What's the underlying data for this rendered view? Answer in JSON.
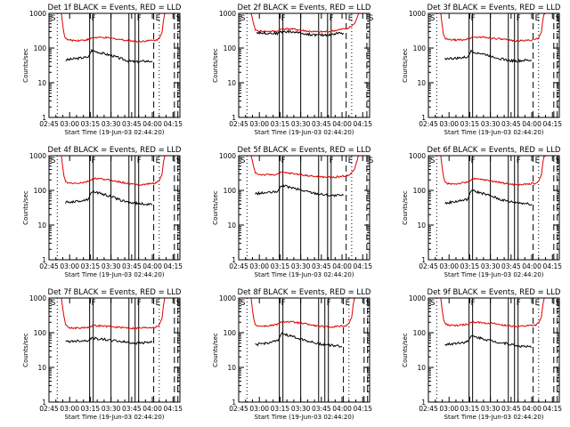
{
  "colors": {
    "events": "#000000",
    "lld": "#e00000",
    "background": "#ffffff"
  },
  "chart_data": [
    {
      "type": "line",
      "title": "Det 1f BLACK = Events, RED = LLD",
      "xlabel": "Start Time (19-Jun-03 02:44:20)",
      "ylabel": "Counts/sec",
      "yscale": "log",
      "ylim": [
        1,
        1000
      ],
      "xlim_min": [
        0,
        95
      ],
      "xticks": [
        "02:45",
        "03:00",
        "03:15",
        "03:30",
        "03:45",
        "04:00",
        "04:15"
      ],
      "yticks": [
        "1",
        "10",
        "100",
        "1000"
      ],
      "event_markers": {
        "S1": 0,
        "F1": 29.5,
        "F2": 62.5,
        "E": 76,
        "S2": 91
      },
      "series": [
        {
          "name": "Events",
          "color": "#000000",
          "x": [
            12,
            20,
            28.5,
            31,
            38,
            46,
            52,
            58,
            64,
            70,
            75
          ],
          "y": [
            45,
            50,
            55,
            85,
            72,
            60,
            50,
            42,
            40,
            42,
            42
          ]
        },
        {
          "name": "LLD",
          "color": "#e00000",
          "x": [
            9,
            10,
            11,
            12,
            14,
            20,
            26,
            29,
            32,
            40,
            48,
            55,
            61,
            65,
            70,
            78,
            80,
            82,
            83,
            84,
            85
          ],
          "y": [
            1000,
            450,
            250,
            190,
            170,
            165,
            170,
            180,
            200,
            200,
            185,
            170,
            160,
            155,
            160,
            170,
            190,
            280,
            600,
            1000,
            1000
          ]
        }
      ]
    },
    {
      "type": "line",
      "title": "Det 2f BLACK = Events, RED = LLD",
      "xlabel": "Start Time (19-Jun-03 02:44:20)",
      "ylabel": "Counts/sec",
      "yscale": "log",
      "ylim": [
        1,
        1000
      ],
      "xlim_min": [
        0,
        95
      ],
      "xticks": [
        "02:45",
        "03:00",
        "03:15",
        "03:30",
        "03:45",
        "04:00",
        "04:15"
      ],
      "yticks": [
        "1",
        "10",
        "100",
        "1000"
      ],
      "event_markers": {
        "S1": 0,
        "F1": 29.5,
        "F2": 64.5,
        "E": 78,
        "S2": 93
      },
      "series": [
        {
          "name": "Events",
          "color": "#000000",
          "x": [
            13,
            20,
            28,
            32,
            40,
            50,
            58,
            66,
            72,
            76
          ],
          "y": [
            280,
            270,
            265,
            300,
            290,
            250,
            235,
            240,
            265,
            270
          ]
        },
        {
          "name": "LLD",
          "color": "#e00000",
          "x": [
            9,
            10,
            11,
            12,
            14,
            20,
            28,
            32,
            40,
            50,
            58,
            66,
            72,
            80,
            84,
            86,
            87,
            88
          ],
          "y": [
            1000,
            700,
            450,
            340,
            310,
            300,
            305,
            360,
            350,
            305,
            290,
            300,
            330,
            380,
            500,
            750,
            1000,
            1000
          ]
        }
      ]
    },
    {
      "type": "line",
      "title": "Det 3f BLACK = Events, RED = LLD",
      "xlabel": "Start Time (19-Jun-03 02:44:20)",
      "ylabel": "Counts/sec",
      "yscale": "log",
      "ylim": [
        1,
        1000
      ],
      "xlim_min": [
        0,
        95
      ],
      "xticks": [
        "02:45",
        "03:00",
        "03:15",
        "03:30",
        "03:45",
        "04:00",
        "04:15"
      ],
      "yticks": [
        "1",
        "10",
        "100",
        "1000"
      ],
      "event_markers": {
        "S1": 0,
        "F1": 29.5,
        "F2": 62.5,
        "E": 76,
        "S2": 91
      },
      "series": [
        {
          "name": "Events",
          "color": "#000000",
          "x": [
            12,
            20,
            28.5,
            31,
            38,
            46,
            52,
            58,
            64,
            70,
            75
          ],
          "y": [
            50,
            50,
            55,
            80,
            70,
            58,
            50,
            44,
            42,
            44,
            44
          ]
        },
        {
          "name": "LLD",
          "color": "#e00000",
          "x": [
            9,
            10,
            11,
            12,
            14,
            20,
            26,
            29,
            32,
            40,
            48,
            55,
            61,
            65,
            70,
            78,
            80,
            82,
            83,
            84,
            85
          ],
          "y": [
            1000,
            450,
            250,
            190,
            175,
            170,
            175,
            185,
            205,
            205,
            190,
            175,
            165,
            160,
            165,
            175,
            195,
            290,
            620,
            1000,
            1000
          ]
        }
      ]
    },
    {
      "type": "line",
      "title": "Det 4f BLACK = Events, RED = LLD",
      "xlabel": "Start Time (19-Jun-03 02:44:20)",
      "ylabel": "Counts/sec",
      "yscale": "log",
      "ylim": [
        1,
        1000
      ],
      "xlim_min": [
        0,
        95
      ],
      "xticks": [
        "02:45",
        "03:00",
        "03:15",
        "03:30",
        "03:45",
        "04:00",
        "04:15"
      ],
      "yticks": [
        "1",
        "10",
        "100",
        "1000"
      ],
      "event_markers": {
        "S1": 0,
        "F1": 29.5,
        "F2": 62.5,
        "E": 76,
        "S2": 91
      },
      "series": [
        {
          "name": "Events",
          "color": "#000000",
          "x": [
            12,
            20,
            28.5,
            31,
            38,
            46,
            52,
            58,
            64,
            70,
            75
          ],
          "y": [
            45,
            48,
            55,
            95,
            80,
            65,
            52,
            45,
            42,
            40,
            38
          ]
        },
        {
          "name": "LLD",
          "color": "#e00000",
          "x": [
            9,
            10,
            11,
            12,
            14,
            20,
            26,
            29,
            32,
            40,
            48,
            55,
            61,
            65,
            70,
            78,
            80,
            82,
            83,
            84,
            85
          ],
          "y": [
            1000,
            450,
            250,
            180,
            160,
            160,
            170,
            185,
            220,
            210,
            185,
            165,
            150,
            145,
            150,
            165,
            190,
            290,
            620,
            1000,
            1000
          ]
        }
      ]
    },
    {
      "type": "line",
      "title": "Det 5f BLACK = Events, RED = LLD",
      "xlabel": "Start Time (19-Jun-03 02:44:20)",
      "ylabel": "Counts/sec",
      "yscale": "log",
      "ylim": [
        1,
        1000
      ],
      "xlim_min": [
        0,
        95
      ],
      "xticks": [
        "02:45",
        "03:00",
        "03:15",
        "03:30",
        "03:45",
        "04:00",
        "04:15"
      ],
      "yticks": [
        "1",
        "10",
        "100",
        "1000"
      ],
      "event_markers": {
        "S1": 0,
        "F1": 29.5,
        "F2": 64.5,
        "E": 78,
        "S2": 93
      },
      "series": [
        {
          "name": "Events",
          "color": "#000000",
          "x": [
            12,
            20,
            28,
            31,
            38,
            46,
            54,
            62,
            70,
            76
          ],
          "y": [
            80,
            85,
            90,
            140,
            120,
            100,
            85,
            75,
            70,
            72
          ]
        },
        {
          "name": "LLD",
          "color": "#e00000",
          "x": [
            9,
            10,
            11,
            12,
            14,
            20,
            28,
            31,
            38,
            46,
            54,
            62,
            70,
            80,
            84,
            86,
            87,
            88
          ],
          "y": [
            1000,
            700,
            450,
            330,
            290,
            280,
            290,
            330,
            310,
            280,
            255,
            240,
            240,
            270,
            400,
            750,
            1000,
            1000
          ]
        }
      ]
    },
    {
      "type": "line",
      "title": "Det 6f BLACK = Events, RED = LLD",
      "xlabel": "Start Time (19-Jun-03 02:44:20)",
      "ylabel": "Counts/sec",
      "yscale": "log",
      "ylim": [
        1,
        1000
      ],
      "xlim_min": [
        0,
        95
      ],
      "xticks": [
        "02:45",
        "03:00",
        "03:15",
        "03:30",
        "03:45",
        "04:00",
        "04:15"
      ],
      "yticks": [
        "1",
        "10",
        "100",
        "1000"
      ],
      "event_markers": {
        "S1": 0,
        "F1": 29.5,
        "F2": 62.5,
        "E": 76,
        "S2": 91
      },
      "series": [
        {
          "name": "Events",
          "color": "#000000",
          "x": [
            12,
            20,
            28.5,
            31,
            38,
            46,
            52,
            58,
            64,
            70,
            75
          ],
          "y": [
            42,
            48,
            55,
            100,
            85,
            68,
            55,
            48,
            45,
            42,
            40
          ]
        },
        {
          "name": "LLD",
          "color": "#e00000",
          "x": [
            9,
            10,
            11,
            12,
            14,
            20,
            26,
            29,
            32,
            40,
            48,
            55,
            61,
            65,
            70,
            78,
            80,
            82,
            83,
            84,
            85
          ],
          "y": [
            1000,
            450,
            250,
            170,
            155,
            155,
            165,
            180,
            215,
            205,
            180,
            160,
            150,
            145,
            150,
            160,
            185,
            280,
            600,
            1000,
            1000
          ]
        }
      ]
    },
    {
      "type": "line",
      "title": "Det 7f BLACK = Events, RED = LLD",
      "xlabel": "Start Time (19-Jun-03 02:44:20)",
      "ylabel": "Counts/sec",
      "yscale": "log",
      "ylim": [
        1,
        1000
      ],
      "xlim_min": [
        0,
        95
      ],
      "xticks": [
        "02:45",
        "03:00",
        "03:15",
        "03:30",
        "03:45",
        "04:00",
        "04:15"
      ],
      "yticks": [
        "1",
        "10",
        "100",
        "1000"
      ],
      "event_markers": {
        "S1": 0,
        "F1": 29.5,
        "F2": 62.5,
        "E": 76,
        "S2": 91
      },
      "series": [
        {
          "name": "Events",
          "color": "#000000",
          "x": [
            12,
            20,
            28.5,
            31,
            38,
            46,
            52,
            58,
            64,
            70,
            75
          ],
          "y": [
            55,
            58,
            60,
            70,
            65,
            60,
            56,
            52,
            50,
            52,
            54
          ]
        },
        {
          "name": "LLD",
          "color": "#e00000",
          "x": [
            9,
            10,
            11,
            12,
            14,
            20,
            26,
            29,
            32,
            40,
            48,
            55,
            61,
            65,
            70,
            78,
            80,
            82,
            83,
            84,
            85
          ],
          "y": [
            1000,
            500,
            280,
            180,
            140,
            135,
            140,
            145,
            160,
            155,
            145,
            140,
            135,
            135,
            140,
            145,
            170,
            260,
            580,
            1000,
            1000
          ]
        }
      ]
    },
    {
      "type": "line",
      "title": "Det 8f BLACK = Events, RED = LLD",
      "xlabel": "Start Time (19-Jun-03 02:44:20)",
      "ylabel": "Counts/sec",
      "yscale": "log",
      "ylim": [
        1,
        1000
      ],
      "xlim_min": [
        0,
        95
      ],
      "xticks": [
        "02:45",
        "03:00",
        "03:15",
        "03:30",
        "03:45",
        "04:00",
        "04:15"
      ],
      "yticks": [
        "1",
        "10",
        "100",
        "1000"
      ],
      "event_markers": {
        "S1": 0,
        "F1": 29.5,
        "F2": 62.5,
        "E": 76,
        "S2": 91
      },
      "series": [
        {
          "name": "Events",
          "color": "#000000",
          "x": [
            12,
            20,
            28.5,
            31,
            38,
            46,
            52,
            58,
            64,
            70,
            75
          ],
          "y": [
            45,
            50,
            58,
            95,
            80,
            65,
            55,
            48,
            45,
            42,
            40
          ]
        },
        {
          "name": "LLD",
          "color": "#e00000",
          "x": [
            9,
            10,
            11,
            12,
            14,
            20,
            26,
            29,
            32,
            40,
            48,
            55,
            61,
            65,
            70,
            78,
            80,
            82,
            83,
            84,
            85
          ],
          "y": [
            1000,
            450,
            250,
            175,
            155,
            155,
            165,
            180,
            210,
            200,
            180,
            160,
            150,
            145,
            150,
            160,
            185,
            280,
            600,
            1000,
            1000
          ]
        }
      ]
    },
    {
      "type": "line",
      "title": "Det 9f BLACK = Events, RED = LLD",
      "xlabel": "Start Time (19-Jun-03 02:44:20)",
      "ylabel": "Counts/sec",
      "yscale": "log",
      "ylim": [
        1,
        1000
      ],
      "xlim_min": [
        0,
        95
      ],
      "xticks": [
        "02:45",
        "03:00",
        "03:15",
        "03:30",
        "03:45",
        "04:00",
        "04:15"
      ],
      "yticks": [
        "1",
        "10",
        "100",
        "1000"
      ],
      "event_markers": {
        "S1": 0,
        "F1": 29.5,
        "F2": 62.5,
        "E": 76,
        "S2": 91
      },
      "series": [
        {
          "name": "Events",
          "color": "#000000",
          "x": [
            12,
            20,
            28.5,
            31,
            38,
            46,
            52,
            58,
            64,
            70,
            75
          ],
          "y": [
            45,
            50,
            55,
            80,
            70,
            58,
            52,
            48,
            42,
            40,
            38
          ]
        },
        {
          "name": "LLD",
          "color": "#e00000",
          "x": [
            9,
            10,
            11,
            12,
            14,
            20,
            26,
            29,
            32,
            40,
            48,
            55,
            61,
            65,
            70,
            78,
            80,
            82,
            83,
            84,
            85
          ],
          "y": [
            1000,
            450,
            250,
            185,
            165,
            160,
            170,
            180,
            200,
            195,
            180,
            165,
            155,
            150,
            155,
            165,
            190,
            285,
            610,
            1000,
            1000
          ]
        }
      ]
    }
  ]
}
